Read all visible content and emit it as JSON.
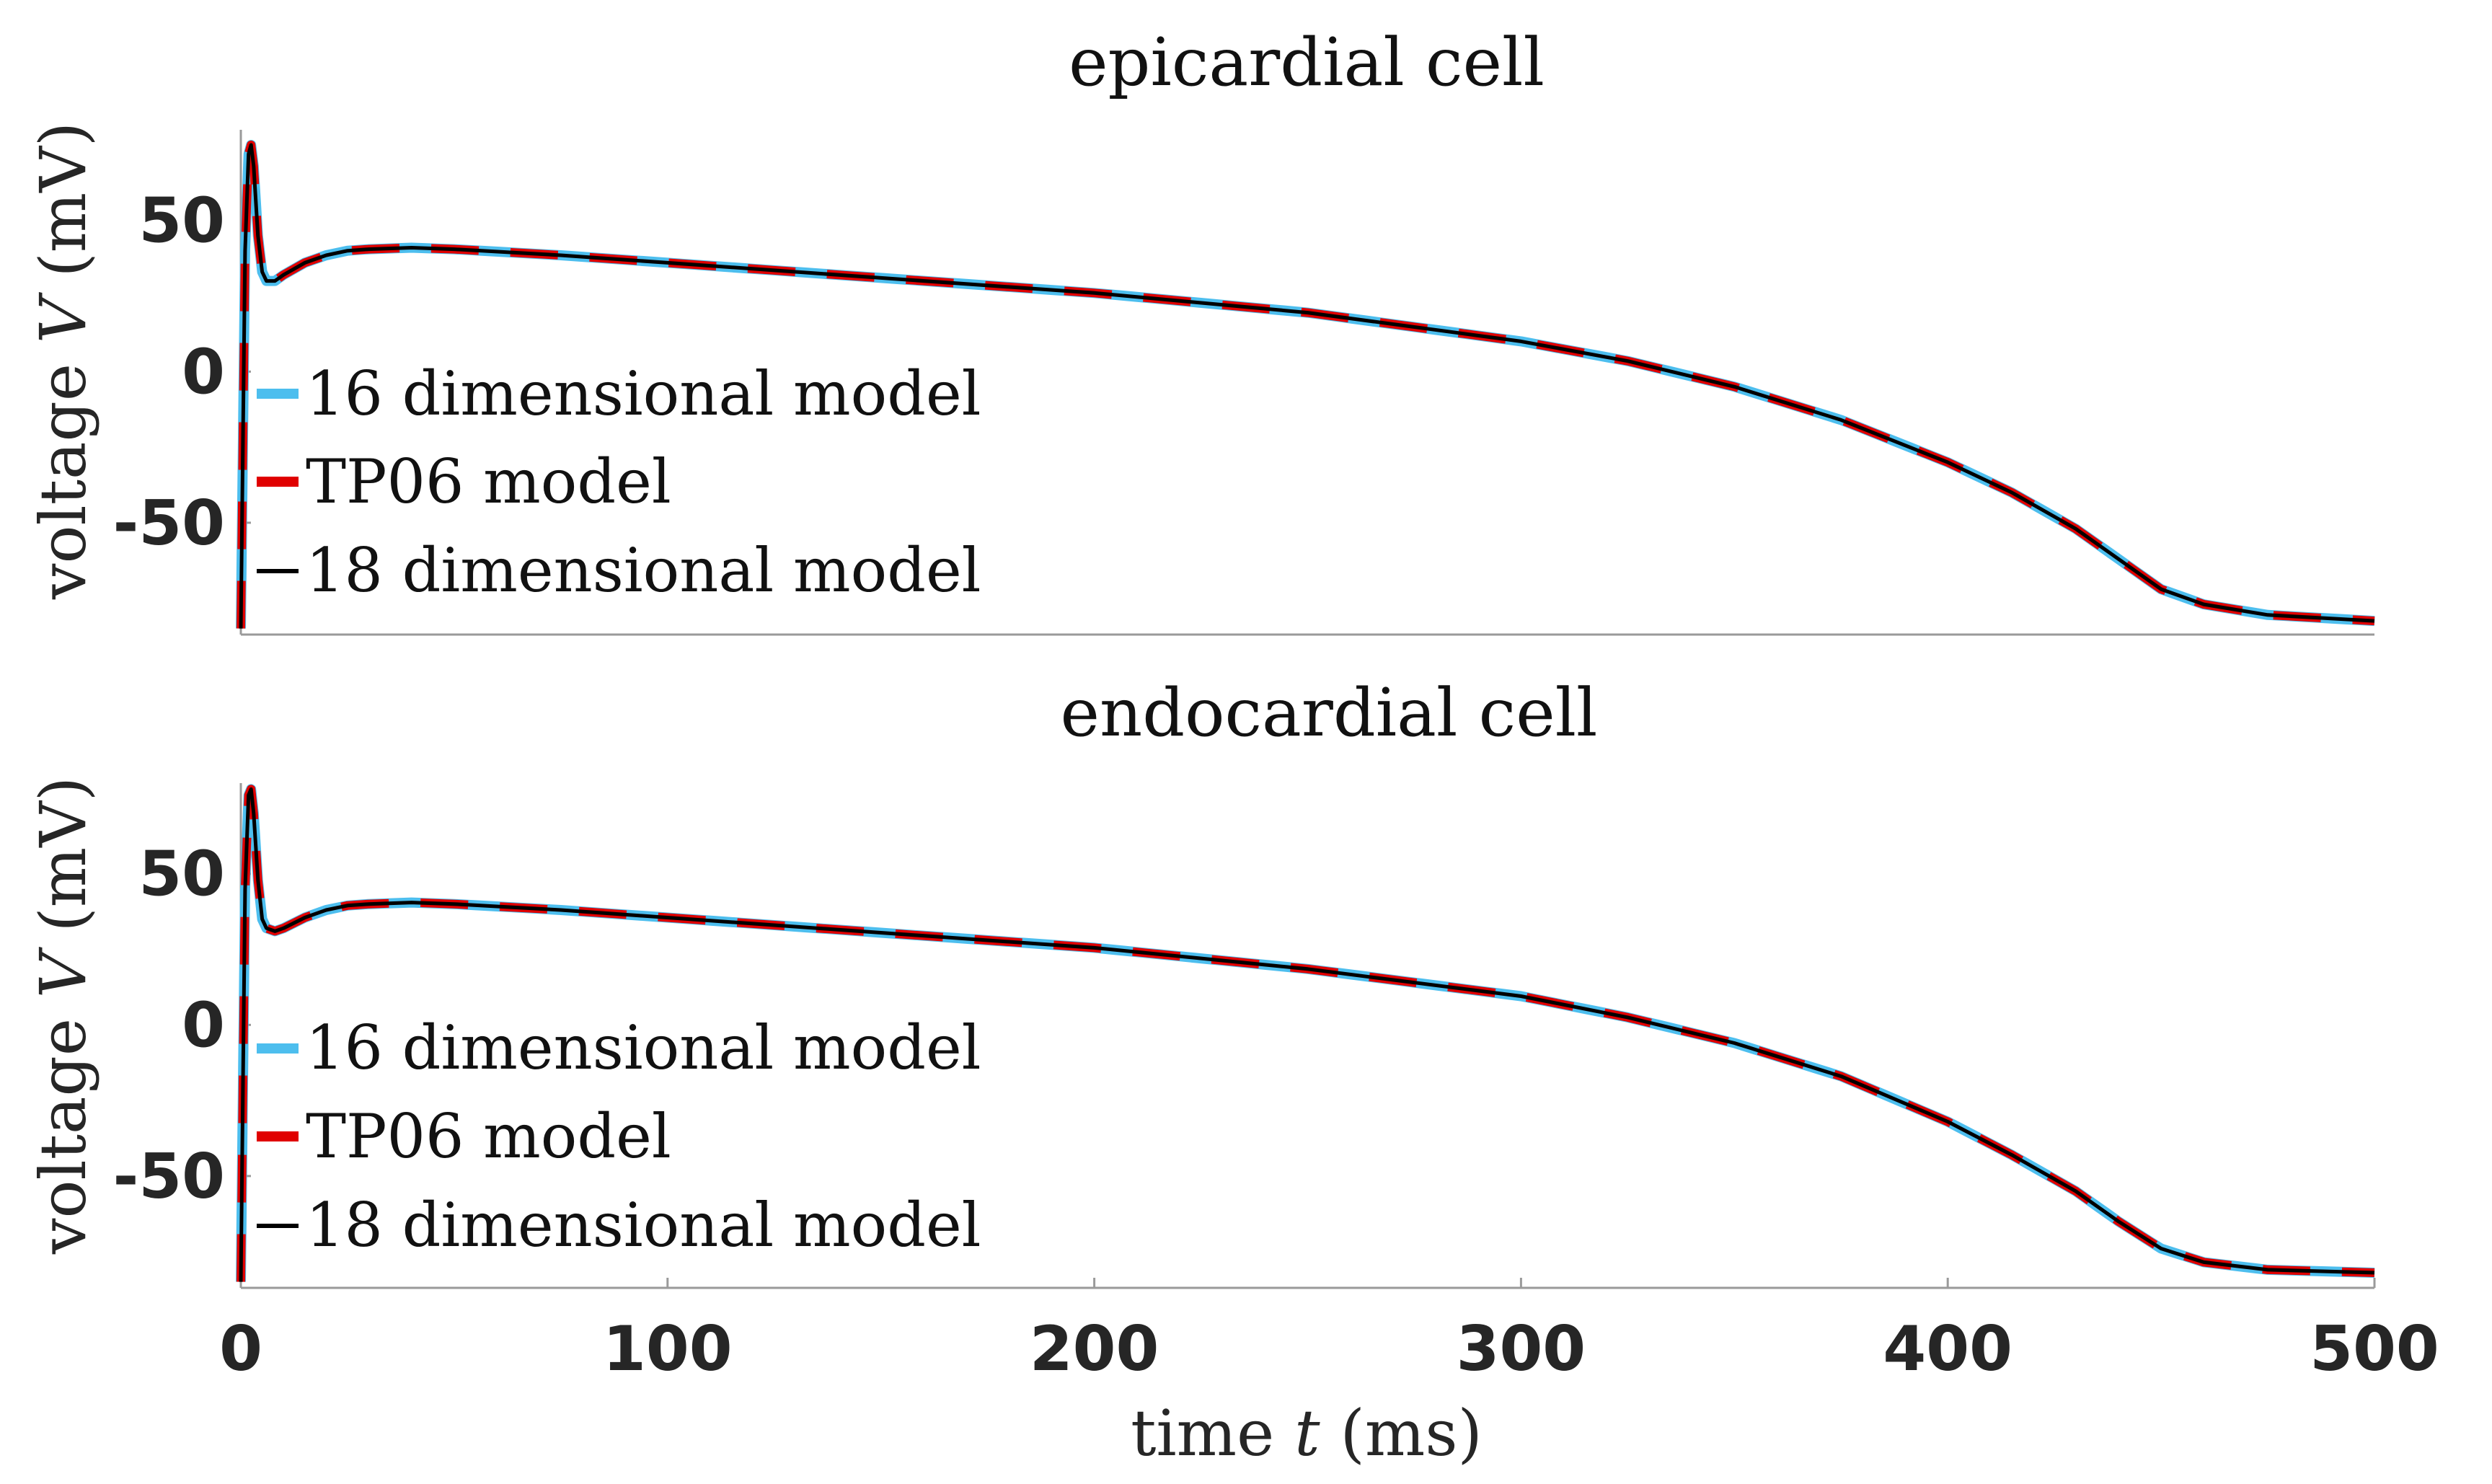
{
  "chart_data": [
    {
      "type": "line",
      "title": "epicardial cell",
      "ylabel_text": "voltage",
      "ylabel_var": "V",
      "ylabel_unit": "(mV)",
      "xlim": [
        0,
        500
      ],
      "ylim": [
        -87,
        80
      ],
      "yticks": [
        50,
        0,
        -50
      ],
      "ytick_labels": [
        "50",
        "0",
        "-50"
      ],
      "legend_position": "left",
      "series": [
        {
          "name": "16 dimensional model",
          "color": "#4DBEEE",
          "style": "solid",
          "x": [
            0,
            1,
            1.8,
            2.4,
            3,
            4,
            5,
            6,
            8,
            10,
            15,
            20,
            25,
            30,
            40,
            50,
            75,
            100,
            150,
            200,
            250,
            300,
            325,
            350,
            375,
            400,
            415,
            430,
            440,
            450,
            460,
            475,
            500
          ],
          "y": [
            -85,
            40,
            72,
            75,
            68,
            45,
            33,
            30,
            30,
            32,
            36,
            38.5,
            40,
            40.5,
            41,
            40.5,
            38.5,
            36,
            31,
            26,
            19.5,
            10,
            3.5,
            -5,
            -16,
            -30,
            -40,
            -52,
            -62,
            -72,
            -77,
            -80.5,
            -82.5
          ]
        },
        {
          "name": "TP06 model",
          "color": "#E00000",
          "style": "dashed",
          "x": [
            0,
            1,
            1.8,
            2.4,
            3,
            4,
            5,
            6,
            8,
            10,
            15,
            20,
            25,
            30,
            40,
            50,
            75,
            100,
            150,
            200,
            250,
            300,
            325,
            350,
            375,
            400,
            415,
            430,
            440,
            450,
            460,
            475,
            500
          ],
          "y": [
            -85,
            40,
            72,
            75,
            68,
            45,
            33,
            30,
            30,
            32,
            36,
            38.5,
            40,
            40.5,
            41,
            40.5,
            38.5,
            36,
            31,
            26,
            19.5,
            10,
            3.5,
            -5,
            -16,
            -30,
            -40,
            -52,
            -62,
            -72,
            -77,
            -80.5,
            -82.5
          ]
        },
        {
          "name": "18 dimensional model",
          "color": "#000000",
          "style": "solid",
          "x": [
            0,
            1,
            1.8,
            2.4,
            3,
            4,
            5,
            6,
            8,
            10,
            15,
            20,
            25,
            30,
            40,
            50,
            75,
            100,
            150,
            200,
            250,
            300,
            325,
            350,
            375,
            400,
            415,
            430,
            440,
            450,
            460,
            475,
            500
          ],
          "y": [
            -85,
            40,
            72,
            75,
            68,
            45,
            33,
            30,
            30,
            32,
            36,
            38.5,
            40,
            40.5,
            41,
            40.5,
            38.5,
            36,
            31,
            26,
            19.5,
            10,
            3.5,
            -5,
            -16,
            -30,
            -40,
            -52,
            -62,
            -72,
            -77,
            -80.5,
            -82.5
          ]
        }
      ]
    },
    {
      "type": "line",
      "title": "endocardial cell",
      "ylabel_text": "voltage",
      "ylabel_var": "V",
      "ylabel_unit": "(mV)",
      "xlim": [
        0,
        500
      ],
      "ylim": [
        -87,
        80
      ],
      "yticks": [
        50,
        0,
        -50
      ],
      "ytick_labels": [
        "50",
        "0",
        "-50"
      ],
      "xticks": [
        0,
        100,
        200,
        300,
        400,
        500
      ],
      "xtick_labels": [
        "0",
        "100",
        "200",
        "300",
        "400",
        "500"
      ],
      "xlabel_text": "time",
      "xlabel_var": "t",
      "xlabel_unit": "(ms)",
      "legend_position": "left",
      "series": [
        {
          "name": "16 dimensional model",
          "color": "#4DBEEE",
          "style": "solid",
          "x": [
            0,
            1,
            1.8,
            2.4,
            3,
            4,
            5,
            6,
            8,
            10,
            15,
            20,
            25,
            30,
            40,
            50,
            75,
            100,
            150,
            200,
            250,
            300,
            325,
            350,
            375,
            400,
            415,
            430,
            440,
            450,
            460,
            475,
            500
          ],
          "y": [
            -85,
            45,
            76,
            78,
            70,
            48,
            35,
            32,
            31,
            32,
            35.5,
            38,
            39.5,
            40,
            40.5,
            40,
            38,
            35.5,
            30.5,
            25.5,
            18.5,
            9.5,
            2.5,
            -6,
            -17,
            -32,
            -43,
            -55,
            -65,
            -74,
            -78.5,
            -81,
            -82
          ]
        },
        {
          "name": "TP06 model",
          "color": "#E00000",
          "style": "dashed",
          "x": [
            0,
            1,
            1.8,
            2.4,
            3,
            4,
            5,
            6,
            8,
            10,
            15,
            20,
            25,
            30,
            40,
            50,
            75,
            100,
            150,
            200,
            250,
            300,
            325,
            350,
            375,
            400,
            415,
            430,
            440,
            450,
            460,
            475,
            500
          ],
          "y": [
            -85,
            45,
            76,
            78,
            70,
            48,
            35,
            32,
            31,
            32,
            35.5,
            38,
            39.5,
            40,
            40.5,
            40,
            38,
            35.5,
            30.5,
            25.5,
            18.5,
            9.5,
            2.5,
            -6,
            -17,
            -32,
            -43,
            -55,
            -65,
            -74,
            -78.5,
            -81,
            -82
          ]
        },
        {
          "name": "18 dimensional model",
          "color": "#000000",
          "style": "solid",
          "x": [
            0,
            1,
            1.8,
            2.4,
            3,
            4,
            5,
            6,
            8,
            10,
            15,
            20,
            25,
            30,
            40,
            50,
            75,
            100,
            150,
            200,
            250,
            300,
            325,
            350,
            375,
            400,
            415,
            430,
            440,
            450,
            460,
            475,
            500
          ],
          "y": [
            -85,
            45,
            76,
            78,
            70,
            48,
            35,
            32,
            31,
            32,
            35.5,
            38,
            39.5,
            40,
            40.5,
            40,
            38,
            35.5,
            30.5,
            25.5,
            18.5,
            9.5,
            2.5,
            -6,
            -17,
            -32,
            -43,
            -55,
            -65,
            -74,
            -78.5,
            -81,
            -82
          ]
        }
      ]
    }
  ]
}
